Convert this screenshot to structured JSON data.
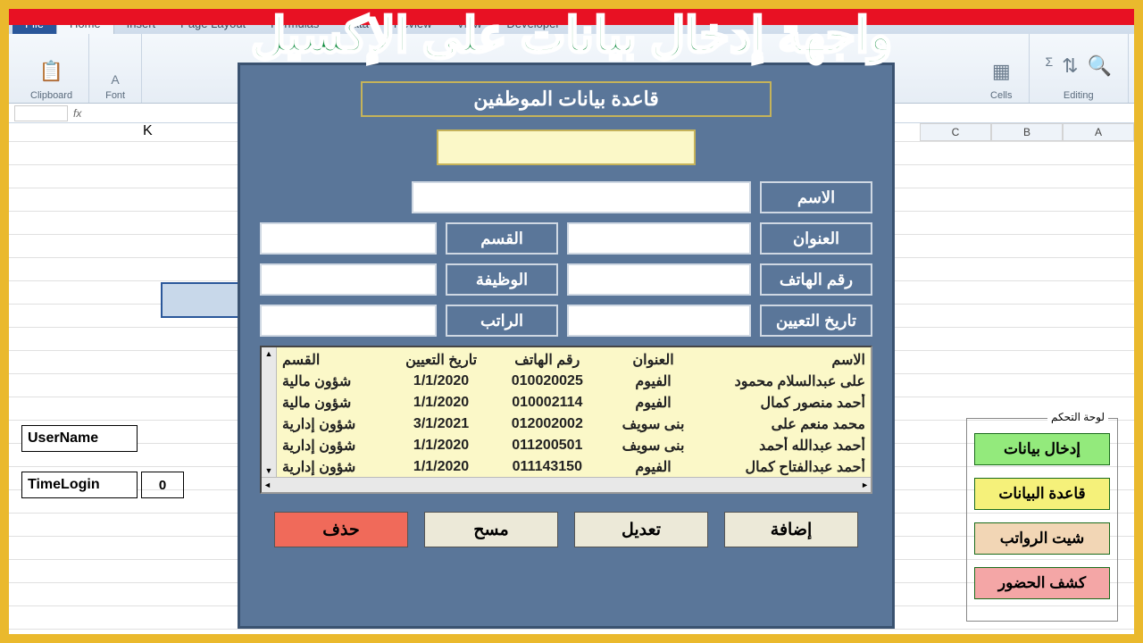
{
  "colors": {
    "page_border": "#eab92d",
    "dialog_bg": "#5a7699",
    "dialog_border": "#3a5270",
    "yellow_field": "#fbf8c8",
    "yellow_border": "#c5b35a",
    "title_green": "#0a8a3a",
    "red_banner": "#e81123",
    "btn_add": "#93ea7c",
    "btn_db": "#f5f17a",
    "btn_salary": "#f2d6b5",
    "btn_attend": "#f4a6a6",
    "delete_btn": "#f06a5a"
  },
  "hero_title": "واجهة إدخال بيانات على الإكسيل",
  "ribbon": {
    "file": "File",
    "tabs": [
      "Home",
      "Insert",
      "Page Layout",
      "Formulas",
      "Data",
      "Review",
      "View",
      "Developer"
    ],
    "groups_left": [
      "Clipboard",
      "Font"
    ],
    "groups_right": [
      "Format",
      "Sort & Filter",
      "Find & Select"
    ],
    "section_cells": "Cells",
    "section_editing": "Editing"
  },
  "formula_bar": {
    "fx": "fx"
  },
  "columns": [
    "A",
    "B",
    "C",
    "K"
  ],
  "side": {
    "username_label": "UserName",
    "timelogin_label": "TimeLogin",
    "timelogin_value": "0"
  },
  "control_panel": {
    "legend": "لوحة التحكم",
    "btn_input": "إدخال بيانات",
    "btn_database": "قاعدة البيانات",
    "btn_salary": "شيت الرواتب",
    "btn_attendance": "كشف الحضور"
  },
  "dialog": {
    "title": "قاعدة بيانات الموظفين",
    "labels": {
      "name": "الاسم",
      "address": "العنوان",
      "dept": "القسم",
      "phone": "رقم الهاتف",
      "job": "الوظيفة",
      "hiredate": "تاريخ التعيين",
      "salary": "الراتب"
    },
    "listbox": {
      "headers": {
        "name": "الاسم",
        "address": "العنوان",
        "phone": "رقم الهاتف",
        "hiredate": "تاريخ التعيين",
        "dept": "القسم"
      },
      "rows": [
        {
          "name": "على عبدالسلام محمود",
          "address": "الفيوم",
          "phone": "010020025",
          "hiredate": "1/1/2020",
          "dept": "شؤون مالية"
        },
        {
          "name": "أحمد منصور كمال",
          "address": "الفيوم",
          "phone": "010002114",
          "hiredate": "1/1/2020",
          "dept": "شؤون مالية"
        },
        {
          "name": "محمد منعم على",
          "address": "بنى سويف",
          "phone": "012002002",
          "hiredate": "3/1/2021",
          "dept": "شؤون إدارية"
        },
        {
          "name": "أحمد عبدالله أحمد",
          "address": "بنى سويف",
          "phone": "011200501",
          "hiredate": "1/1/2020",
          "dept": "شؤون إدارية"
        },
        {
          "name": "أحمد عبدالفتاح كمال",
          "address": "الفيوم",
          "phone": "011143150",
          "hiredate": "1/1/2020",
          "dept": "شؤون إدارية"
        }
      ]
    },
    "buttons": {
      "add": "إضافة",
      "edit": "تعديل",
      "clear": "مسح",
      "delete": "حذف"
    }
  }
}
